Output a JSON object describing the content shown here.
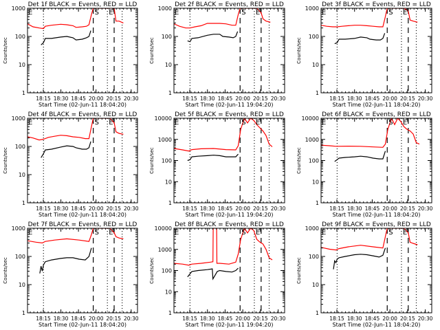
{
  "chart_data": [
    {
      "type": "line",
      "title": "Det 1f BLACK = Events, RED = LLD",
      "xlabel": "Start Time (02-Jun-11 18:04:20)",
      "ylabel": "Counts/sec",
      "yscale": "log",
      "ylim": [
        1,
        1000
      ],
      "yticks": [
        "1",
        "10",
        "100",
        "1000"
      ],
      "xlim_minutes_after_18_00": [
        -4,
        175
      ],
      "xticks": [
        "18:15",
        "18:30",
        "18:45",
        "20:00",
        "20:15",
        "20:30"
      ],
      "markers": {
        "S": "20:03",
        "E": "20:25",
        "dotted": [
          "18:22",
          "20:25",
          "20:50"
        ],
        "dashed": [
          "20:03",
          "20:37"
        ]
      },
      "series": [
        {
          "name": "LLD",
          "color": "#ff0000",
          "x": [
            -4,
            5,
            15,
            22,
            25,
            35,
            50,
            60,
            70,
            75,
            85,
            92,
            96,
            100,
            103,
            130,
            137,
            140,
            145,
            152
          ],
          "y": [
            280,
            220,
            200,
            190,
            230,
            250,
            270,
            260,
            240,
            210,
            220,
            230,
            260,
            600,
            1000,
            1000,
            1000,
            350,
            350,
            300
          ]
        },
        {
          "name": "Events",
          "color": "#000000",
          "x": [
            18,
            22,
            25,
            35,
            50,
            60,
            70,
            75,
            85,
            92,
            96,
            99
          ],
          "y": [
            50,
            60,
            85,
            85,
            95,
            100,
            90,
            75,
            80,
            90,
            100,
            160
          ]
        }
      ]
    },
    {
      "type": "line",
      "title": "Det 2f BLACK = Events, RED = LLD",
      "xlabel": "Start Time (02-Jun-11 19:04:20)",
      "ylabel": "Counts/sec",
      "yscale": "log",
      "ylim": [
        1,
        1000
      ],
      "yticks": [
        "1",
        "10",
        "100",
        "1000"
      ],
      "xlim_minutes_after_18_00": [
        -4,
        175
      ],
      "xticks": [
        "18:15",
        "18:30",
        "18:45",
        "20:00",
        "20:15",
        "20:30"
      ],
      "markers": {
        "S": "20:03",
        "E": "20:25",
        "dotted": [
          "18:22",
          "20:25",
          "20:50"
        ],
        "dashed": [
          "20:03",
          "20:37"
        ]
      },
      "series": [
        {
          "name": "LLD",
          "color": "#ff0000",
          "x": [
            -4,
            5,
            15,
            22,
            30,
            40,
            50,
            60,
            70,
            80,
            90,
            96,
            100,
            103,
            130,
            137,
            140,
            145,
            152
          ],
          "y": [
            280,
            230,
            200,
            200,
            220,
            240,
            290,
            290,
            290,
            280,
            250,
            250,
            600,
            1000,
            1000,
            700,
            420,
            350,
            320
          ]
        },
        {
          "name": "Events",
          "color": "#000000",
          "x": [
            18,
            22,
            25,
            35,
            50,
            60,
            70,
            75,
            85,
            92,
            96,
            99
          ],
          "y": [
            70,
            65,
            85,
            90,
            110,
            120,
            120,
            100,
            95,
            90,
            100,
            150
          ]
        }
      ]
    },
    {
      "type": "line",
      "title": "Det 3f BLACK = Events, RED = LLD",
      "xlabel": "Start Time (02-Jun-11 18:04:20)",
      "ylabel": "Counts/sec",
      "yscale": "log",
      "ylim": [
        1,
        1000
      ],
      "yticks": [
        "1",
        "10",
        "100",
        "1000"
      ],
      "xlim_minutes_after_18_00": [
        -4,
        175
      ],
      "xticks": [
        "18:15",
        "18:30",
        "18:45",
        "20:00",
        "20:15",
        "20:30"
      ],
      "markers": {
        "S": "20:03",
        "E": "20:25",
        "dotted": [
          "18:22",
          "20:25",
          "20:50"
        ],
        "dashed": [
          "20:03",
          "20:37"
        ]
      },
      "series": [
        {
          "name": "LLD",
          "color": "#ff0000",
          "x": [
            -4,
            5,
            15,
            22,
            30,
            40,
            50,
            60,
            70,
            80,
            90,
            96,
            100,
            103,
            130,
            137,
            140,
            145,
            152
          ],
          "y": [
            250,
            230,
            220,
            220,
            230,
            240,
            250,
            250,
            240,
            230,
            220,
            220,
            500,
            1000,
            1000,
            800,
            380,
            350,
            320
          ]
        },
        {
          "name": "Events",
          "color": "#000000",
          "x": [
            18,
            22,
            25,
            35,
            50,
            60,
            70,
            75,
            85,
            92,
            96,
            99
          ],
          "y": [
            55,
            60,
            80,
            80,
            85,
            95,
            90,
            80,
            75,
            75,
            85,
            130
          ]
        }
      ]
    },
    {
      "type": "line",
      "title": "Det 4f BLACK = Events, RED = LLD",
      "xlabel": "Start Time (02-Jun-11 18:04:20)",
      "ylabel": "Counts/sec",
      "yscale": "log",
      "ylim": [
        1,
        1000
      ],
      "yticks": [
        "1",
        "10",
        "100",
        "1000"
      ],
      "xlim_minutes_after_18_00": [
        -4,
        175
      ],
      "xticks": [
        "18:15",
        "18:30",
        "18:45",
        "20:00",
        "20:15",
        "20:30"
      ],
      "markers": {
        "S": "20:03",
        "E": "20:25",
        "dotted": [
          "18:22",
          "20:25",
          "20:50"
        ],
        "dashed": [
          "20:03",
          "20:37"
        ]
      },
      "series": [
        {
          "name": "LLD",
          "color": "#ff0000",
          "x": [
            -4,
            5,
            15,
            22,
            30,
            40,
            50,
            60,
            70,
            80,
            90,
            96,
            100,
            103,
            130,
            137,
            140,
            145,
            152
          ],
          "y": [
            220,
            200,
            170,
            180,
            210,
            230,
            250,
            240,
            220,
            210,
            190,
            190,
            500,
            1000,
            1000,
            700,
            330,
            290,
            270
          ]
        },
        {
          "name": "Events",
          "color": "#000000",
          "x": [
            18,
            22,
            25,
            35,
            50,
            60,
            70,
            75,
            85,
            92,
            96,
            99
          ],
          "y": [
            40,
            55,
            75,
            80,
            95,
            105,
            100,
            90,
            80,
            80,
            90,
            150
          ]
        }
      ]
    },
    {
      "type": "line",
      "title": "Det 5f BLACK = Events, RED = LLD",
      "xlabel": "Start Time (02-Jun-11 19:04:20)",
      "ylabel": "Counts/sec",
      "yscale": "log",
      "ylim": [
        1,
        10000
      ],
      "yticks": [
        "1",
        "10",
        "100",
        "1000",
        "10000"
      ],
      "xlim_minutes_after_18_00": [
        -4,
        175
      ],
      "xticks": [
        "18:15",
        "18:30",
        "18:45",
        "20:00",
        "20:15",
        "20:30"
      ],
      "markers": {
        "S": "20:03",
        "E": "20:25",
        "dotted": [
          "18:22",
          "20:25",
          "20:50"
        ],
        "dashed": [
          "20:03",
          "20:37"
        ]
      },
      "series": [
        {
          "name": "LLD",
          "color": "#ff0000",
          "x": [
            -4,
            10,
            20,
            25,
            40,
            60,
            80,
            96,
            100,
            104,
            110,
            115,
            120,
            125,
            130,
            135,
            140,
            145,
            150,
            155
          ],
          "y": [
            370,
            320,
            280,
            330,
            360,
            370,
            330,
            320,
            500,
            3000,
            10000,
            6000,
            10000,
            8000,
            5000,
            3500,
            2500,
            1500,
            600,
            450
          ]
        },
        {
          "name": "Events",
          "color": "#000000",
          "x": [
            18,
            22,
            25,
            35,
            50,
            60,
            70,
            80,
            90,
            96,
            100
          ],
          "y": [
            100,
            110,
            150,
            160,
            170,
            180,
            170,
            150,
            150,
            150,
            200
          ]
        }
      ]
    },
    {
      "type": "line",
      "title": "Det 6f BLACK = Events, RED = LLD",
      "xlabel": "Start Time (02-Jun-11 18:04:20)",
      "ylabel": "Counts/sec",
      "yscale": "log",
      "ylim": [
        1,
        10000
      ],
      "yticks": [
        "1",
        "10",
        "100",
        "1000",
        "10000"
      ],
      "xlim_minutes_after_18_00": [
        -4,
        175
      ],
      "xticks": [
        "18:15",
        "18:30",
        "18:45",
        "20:00",
        "20:15",
        "20:30"
      ],
      "markers": {
        "S": "20:03",
        "E": "20:25",
        "dotted": [
          "18:22",
          "20:25",
          "20:50"
        ],
        "dashed": [
          "20:03",
          "20:37"
        ]
      },
      "series": [
        {
          "name": "LLD",
          "color": "#ff0000",
          "x": [
            -4,
            10,
            20,
            40,
            60,
            80,
            96,
            100,
            104,
            110,
            115,
            120,
            125,
            130,
            135,
            140,
            145,
            150,
            155
          ],
          "y": [
            530,
            500,
            470,
            480,
            470,
            440,
            420,
            600,
            3000,
            10000,
            5000,
            10000,
            7000,
            4000,
            3000,
            2500,
            1800,
            700,
            600
          ]
        },
        {
          "name": "Events",
          "color": "#000000",
          "x": [
            18,
            22,
            25,
            35,
            50,
            60,
            70,
            80,
            90,
            96,
            100
          ],
          "y": [
            90,
            110,
            130,
            140,
            150,
            160,
            150,
            130,
            120,
            120,
            280
          ]
        }
      ]
    },
    {
      "type": "line",
      "title": "Det 7f BLACK = Events, RED = LLD",
      "xlabel": "Start Time (02-Jun-11 18:04:20)",
      "ylabel": "Counts/sec",
      "yscale": "log",
      "ylim": [
        1,
        1000
      ],
      "yticks": [
        "1",
        "10",
        "100",
        "1000"
      ],
      "xlim_minutes_after_18_00": [
        -4,
        175
      ],
      "xticks": [
        "18:15",
        "18:30",
        "18:45",
        "20:00",
        "20:15",
        "20:30"
      ],
      "markers": {
        "S": "20:03",
        "E": "20:25",
        "dotted": [
          "18:22",
          "20:25",
          "20:50"
        ],
        "dashed": [
          "20:03",
          "20:37"
        ]
      },
      "series": [
        {
          "name": "LLD",
          "color": "#ff0000",
          "x": [
            -4,
            10,
            20,
            25,
            40,
            60,
            80,
            96,
            100,
            103,
            130,
            137,
            140,
            145,
            152
          ],
          "y": [
            360,
            320,
            300,
            340,
            380,
            420,
            380,
            340,
            600,
            1000,
            1000,
            700,
            500,
            450,
            420
          ]
        },
        {
          "name": "Events",
          "color": "#000000",
          "x": [
            16,
            18,
            20,
            22,
            25,
            35,
            50,
            60,
            70,
            80,
            90,
            96,
            100
          ],
          "y": [
            25,
            45,
            30,
            50,
            65,
            75,
            85,
            90,
            90,
            80,
            75,
            100,
            200
          ]
        }
      ]
    },
    {
      "type": "line",
      "title": "Det 8f BLACK = Events, RED = LLD",
      "xlabel": "Start Time (02-Jun-11 19:04:20)",
      "ylabel": "Counts/sec",
      "yscale": "log",
      "ylim": [
        1,
        10000
      ],
      "yticks": [
        "1",
        "10",
        "100",
        "1000",
        "10000"
      ],
      "xlim_minutes_after_18_00": [
        -4,
        175
      ],
      "xticks": [
        "18:15",
        "18:30",
        "18:45",
        "20:00",
        "20:15",
        "20:30"
      ],
      "markers": {
        "S": "20:03",
        "E": "20:25",
        "dotted": [
          "18:22",
          "20:25",
          "20:50"
        ],
        "dashed": [
          "20:03",
          "20:37"
        ]
      },
      "series": [
        {
          "name": "LLD",
          "color": "#ff0000",
          "x": [
            -4,
            10,
            20,
            25,
            40,
            55,
            59,
            59.5,
            65,
            65.5,
            70,
            85,
            96,
            100,
            104,
            110,
            115,
            120,
            125,
            130,
            135,
            140,
            145,
            150,
            155
          ],
          "y": [
            220,
            200,
            180,
            200,
            220,
            250,
            260,
            10000,
            10000,
            220,
            220,
            200,
            250,
            600,
            3000,
            10000,
            6000,
            10000,
            8000,
            3000,
            2200,
            1800,
            1000,
            400,
            320
          ]
        },
        {
          "name": "Events",
          "color": "#000000",
          "x": [
            18,
            22,
            25,
            35,
            50,
            58,
            59,
            66,
            70,
            80,
            90,
            96,
            100
          ],
          "y": [
            50,
            70,
            90,
            100,
            110,
            120,
            40,
            90,
            100,
            90,
            85,
            100,
            130
          ]
        }
      ]
    },
    {
      "type": "line",
      "title": "Det 9f BLACK = Events, RED = LLD",
      "xlabel": "Start Time (02-Jun-11 18:04:20)",
      "ylabel": "Counts/sec",
      "yscale": "log",
      "ylim": [
        1,
        1000
      ],
      "yticks": [
        "1",
        "10",
        "100",
        "1000"
      ],
      "xlim_minutes_after_18_00": [
        -4,
        175
      ],
      "xticks": [
        "18:15",
        "18:30",
        "18:45",
        "20:00",
        "20:15",
        "20:30"
      ],
      "markers": {
        "S": "20:03",
        "E": "20:25",
        "dotted": [
          "18:22",
          "20:25",
          "20:50"
        ],
        "dashed": [
          "20:03",
          "20:37"
        ]
      },
      "series": [
        {
          "name": "LLD",
          "color": "#ff0000",
          "x": [
            -4,
            10,
            20,
            25,
            40,
            60,
            80,
            96,
            100,
            103,
            130,
            137,
            140,
            145,
            152
          ],
          "y": [
            210,
            180,
            170,
            190,
            220,
            250,
            220,
            200,
            500,
            1000,
            1000,
            700,
            320,
            290,
            260
          ]
        },
        {
          "name": "Events",
          "color": "#000000",
          "x": [
            16,
            18,
            20,
            22,
            25,
            35,
            50,
            60,
            70,
            80,
            90,
            96,
            100
          ],
          "y": [
            35,
            70,
            60,
            80,
            90,
            100,
            115,
            120,
            115,
            105,
            95,
            110,
            200
          ]
        }
      ]
    }
  ]
}
